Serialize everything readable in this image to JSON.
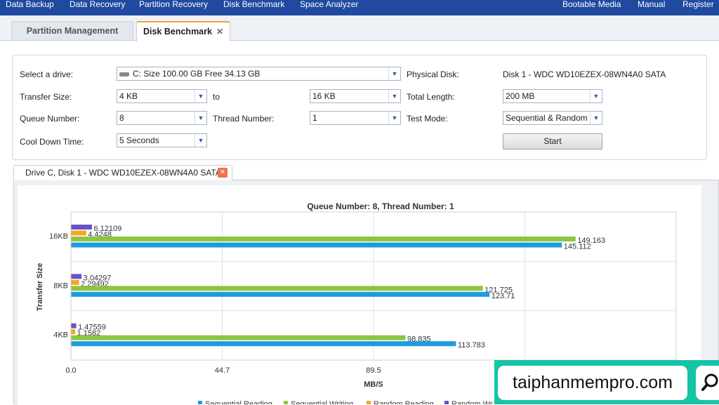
{
  "menubar": {
    "items": [
      {
        "label": "Data Backup"
      },
      {
        "label": "Data Recovery"
      },
      {
        "label": "Partition Recovery"
      },
      {
        "label": "Disk Benchmark"
      },
      {
        "label": "Space Analyzer"
      },
      {
        "label": "Bootable Media"
      },
      {
        "label": "Manual"
      },
      {
        "label": "Register"
      }
    ]
  },
  "tabs": [
    {
      "label": "Partition Management"
    },
    {
      "label": "Disk Benchmark",
      "close": "✕"
    }
  ],
  "settings": {
    "drive_label": "Select a drive:",
    "drive_value": "C:  Size 100.00 GB  Free 34.13 GB",
    "physical_disk_label": "Physical Disk:",
    "physical_disk_value": "Disk 1 - WDC WD10EZEX-08WN4A0 SATA",
    "transfer_size_label": "Transfer Size:",
    "transfer_size_from": "4 KB",
    "to_label": "to",
    "transfer_size_to": "16 KB",
    "total_length_label": "Total Length:",
    "total_length_value": "200 MB",
    "queue_label": "Queue Number:",
    "queue_value": "8",
    "thread_label": "Thread Number:",
    "thread_value": "1",
    "test_mode_label": "Test Mode:",
    "test_mode_value": "Sequential & Random",
    "cooldown_label": "Cool Down Time:",
    "cooldown_value": "5 Seconds",
    "start_label": "Start"
  },
  "result_tab": {
    "label": "Drive C, Disk 1 - WDC WD10EZEX-08WN4A0 SATA",
    "close": "✕"
  },
  "watermark": {
    "text": "taiphanmempro.com"
  },
  "colors": {
    "seq_read": "#1e9be0",
    "seq_write": "#8cc63f",
    "rand_read": "#f5a623",
    "rand_write": "#6a52c9",
    "menubar": "#1f4aa0",
    "watermark": "#16c4a6"
  },
  "chart_data": {
    "type": "bar",
    "orientation": "horizontal",
    "title": "Queue Number: 8, Thread Number: 1",
    "xlabel": "MB/S",
    "ylabel": "Transfer Size",
    "categories": [
      "16KB",
      "8KB",
      "4KB"
    ],
    "xticks": [
      "0.0",
      "44.7",
      "89.5"
    ],
    "xlim": [
      0,
      179
    ],
    "grid": true,
    "legend_position": "bottom",
    "series": [
      {
        "name": "Sequential Reading",
        "legend_label": "Sequential Reading",
        "color": "#1e9be0",
        "values": [
          145.112,
          123.71,
          113.783
        ],
        "labels": [
          "145.112",
          "123.71",
          "113.783"
        ]
      },
      {
        "name": "Sequential Writing",
        "legend_label": "Sequential Writing",
        "color": "#8cc63f",
        "values": [
          149.163,
          121.725,
          98.835
        ],
        "labels": [
          "149.163",
          "121.725",
          "98.835"
        ]
      },
      {
        "name": "Random Reading",
        "legend_label": "Random Reading",
        "color": "#f5a623",
        "values": [
          4.4248,
          2.29492,
          1.1582
        ],
        "labels": [
          "4.4248",
          "2.29492",
          "1.1582"
        ]
      },
      {
        "name": "Random Writing",
        "legend_label": "Random Wr",
        "color": "#6a52c9",
        "values": [
          6.12109,
          3.04297,
          1.47559
        ],
        "labels": [
          "6.12109",
          "3.04297",
          "1.47559"
        ]
      }
    ]
  }
}
